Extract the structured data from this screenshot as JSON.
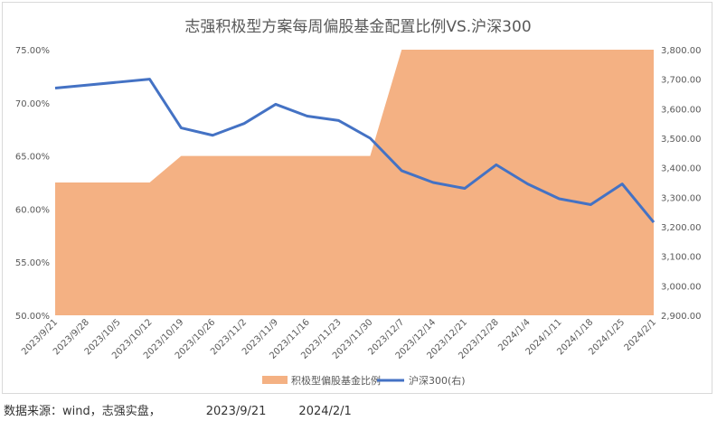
{
  "chart_data": {
    "type": "area+line",
    "title": "志强积极型方案每周偏股基金配置比例VS.沪深300",
    "categories": [
      "2023/9/21",
      "2023/9/28",
      "2023/10/5",
      "2023/10/12",
      "2023/10/19",
      "2023/10/26",
      "2023/11/2",
      "2023/11/9",
      "2023/11/16",
      "2023/11/23",
      "2023/11/30",
      "2023/12/7",
      "2023/12/14",
      "2023/12/21",
      "2023/12/28",
      "2024/1/4",
      "2024/1/11",
      "2024/1/18",
      "2024/1/25",
      "2024/2/1"
    ],
    "y_left": {
      "min": 0.5,
      "max": 0.75,
      "ticks": [
        "50.00%",
        "55.00%",
        "60.00%",
        "65.00%",
        "70.00%",
        "75.00%"
      ]
    },
    "y_right": {
      "min": 2900,
      "max": 3800,
      "ticks": [
        "2,900.00",
        "3,000.00",
        "3,100.00",
        "3,200.00",
        "3,300.00",
        "3,400.00",
        "3,500.00",
        "3,600.00",
        "3,700.00",
        "3,800.00"
      ]
    },
    "series": [
      {
        "name": "积极型偏股基金比例",
        "type": "area",
        "axis": "left",
        "color": "#f4b183",
        "values": [
          0.625,
          0.625,
          0.625,
          0.625,
          0.65,
          0.65,
          0.65,
          0.65,
          0.65,
          0.65,
          0.65,
          0.75,
          0.75,
          0.75,
          0.75,
          0.75,
          0.75,
          0.75,
          0.75,
          0.75
        ]
      },
      {
        "name": "沪深300(右)",
        "type": "line",
        "axis": "right",
        "color": "#4472c4",
        "values": [
          3670,
          3680,
          3690,
          3700,
          3535,
          3510,
          3550,
          3615,
          3575,
          3560,
          3500,
          3390,
          3350,
          3330,
          3410,
          3345,
          3295,
          3275,
          3345,
          3215
        ]
      }
    ],
    "legend_position": "bottom",
    "grid": false
  },
  "footer": {
    "source": "数据来源：wind，志强实盘，",
    "start_date": "2023/9/21",
    "end_date": "2024/2/1"
  }
}
